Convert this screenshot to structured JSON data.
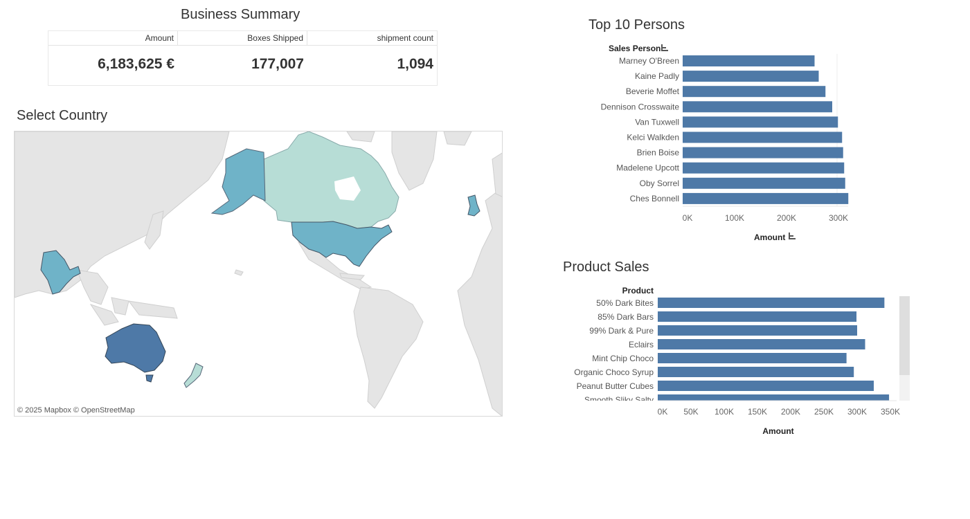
{
  "summary": {
    "title": "Business Summary",
    "columns": [
      {
        "label": "Amount",
        "value": "6,183,625 €"
      },
      {
        "label": "Boxes Shipped",
        "value": "177,007"
      },
      {
        "label": "shipment count",
        "value": "1,094"
      }
    ]
  },
  "map": {
    "title": "Select Country",
    "attribution": "© 2025 Mapbox  © OpenStreetMap",
    "colors": {
      "australia": "#4e79a7",
      "usa": "#6fb3c8",
      "india": "#6fb3c8",
      "uk": "#6fb3c8",
      "alaska": "#6fb3c8",
      "canada": "#b7ddd6",
      "new_zealand": "#b7ddd6",
      "land": "#e5e5e5"
    }
  },
  "top_persons": {
    "title": "Top 10 Persons",
    "header": "Sales Person",
    "axis_title": "Amount",
    "chart_data": {
      "type": "bar",
      "orientation": "horizontal",
      "categories": [
        "Marney O'Breen",
        "Kaine Padly",
        "Beverie Moffet",
        "Dennison Crosswaite",
        "Van Tuxwell",
        "Kelci Walkden",
        "Brien Boise",
        "Madelene Upcott",
        "Oby Sorrel",
        "Ches Bonnell"
      ],
      "values": [
        254000,
        262000,
        275000,
        288000,
        299000,
        307000,
        309000,
        311000,
        313000,
        319000
      ],
      "xlabel": "Amount",
      "ylabel": "Sales Person",
      "xlim": [
        0,
        350000
      ],
      "ticks": [
        "0K",
        "100K",
        "200K",
        "300K"
      ],
      "tick_values": [
        0,
        100000,
        200000,
        300000
      ],
      "color": "#4e79a7"
    }
  },
  "product_sales": {
    "title": "Product Sales",
    "header": "Product",
    "axis_title": "Amount",
    "chart_data": {
      "type": "bar",
      "orientation": "horizontal",
      "categories": [
        "50% Dark Bites",
        "85% Dark Bars",
        "99% Dark & Pure",
        "Eclairs",
        "Mint Chip Choco",
        "Organic Choco Syrup",
        "Peanut Butter Cubes",
        "Smooth Sliky Salty"
      ],
      "values": [
        341000,
        299000,
        300000,
        312000,
        284000,
        295000,
        325000,
        348000
      ],
      "xlabel": "Amount",
      "ylabel": "Product",
      "xlim": [
        0,
        365000
      ],
      "ticks": [
        "0K",
        "50K",
        "100K",
        "150K",
        "200K",
        "250K",
        "300K",
        "350K"
      ],
      "tick_values": [
        0,
        50000,
        100000,
        150000,
        200000,
        250000,
        300000,
        350000
      ],
      "color": "#4e79a7"
    }
  }
}
